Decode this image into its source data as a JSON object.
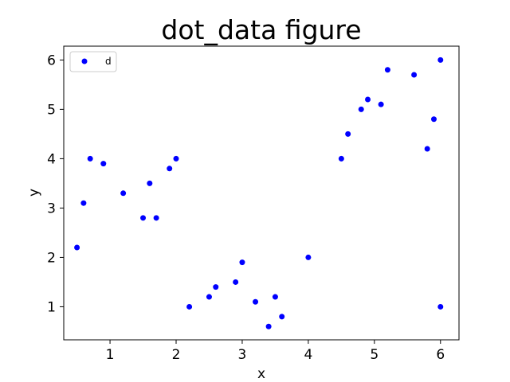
{
  "chart_data": {
    "type": "scatter",
    "title": "dot_data figure",
    "xlabel": "x",
    "ylabel": "y",
    "xlim": [
      0.3,
      6.28
    ],
    "ylim": [
      0.33,
      6.28
    ],
    "xticks": [
      1,
      2,
      3,
      4,
      5,
      6
    ],
    "yticks": [
      1,
      2,
      3,
      4,
      5,
      6
    ],
    "grid": false,
    "legend_position": "top-left",
    "series": [
      {
        "name": "d",
        "color": "#0000ff",
        "marker": "circle",
        "x": [
          0.5,
          0.6,
          0.7,
          0.9,
          1.2,
          1.5,
          1.6,
          1.7,
          1.9,
          2.0,
          2.2,
          2.5,
          2.6,
          2.9,
          3.0,
          3.2,
          3.4,
          3.5,
          3.6,
          4.0,
          4.5,
          4.6,
          4.8,
          4.9,
          5.1,
          5.2,
          5.6,
          5.8,
          5.9,
          6.0,
          6.0
        ],
        "y": [
          2.2,
          3.1,
          4.0,
          3.9,
          3.3,
          2.8,
          3.5,
          2.8,
          3.8,
          4.0,
          1.0,
          1.2,
          1.4,
          1.5,
          1.9,
          1.1,
          0.6,
          1.2,
          0.8,
          2.0,
          4.0,
          4.5,
          5.0,
          5.2,
          5.1,
          5.8,
          5.7,
          4.2,
          4.8,
          6.0,
          1.0
        ]
      }
    ]
  }
}
